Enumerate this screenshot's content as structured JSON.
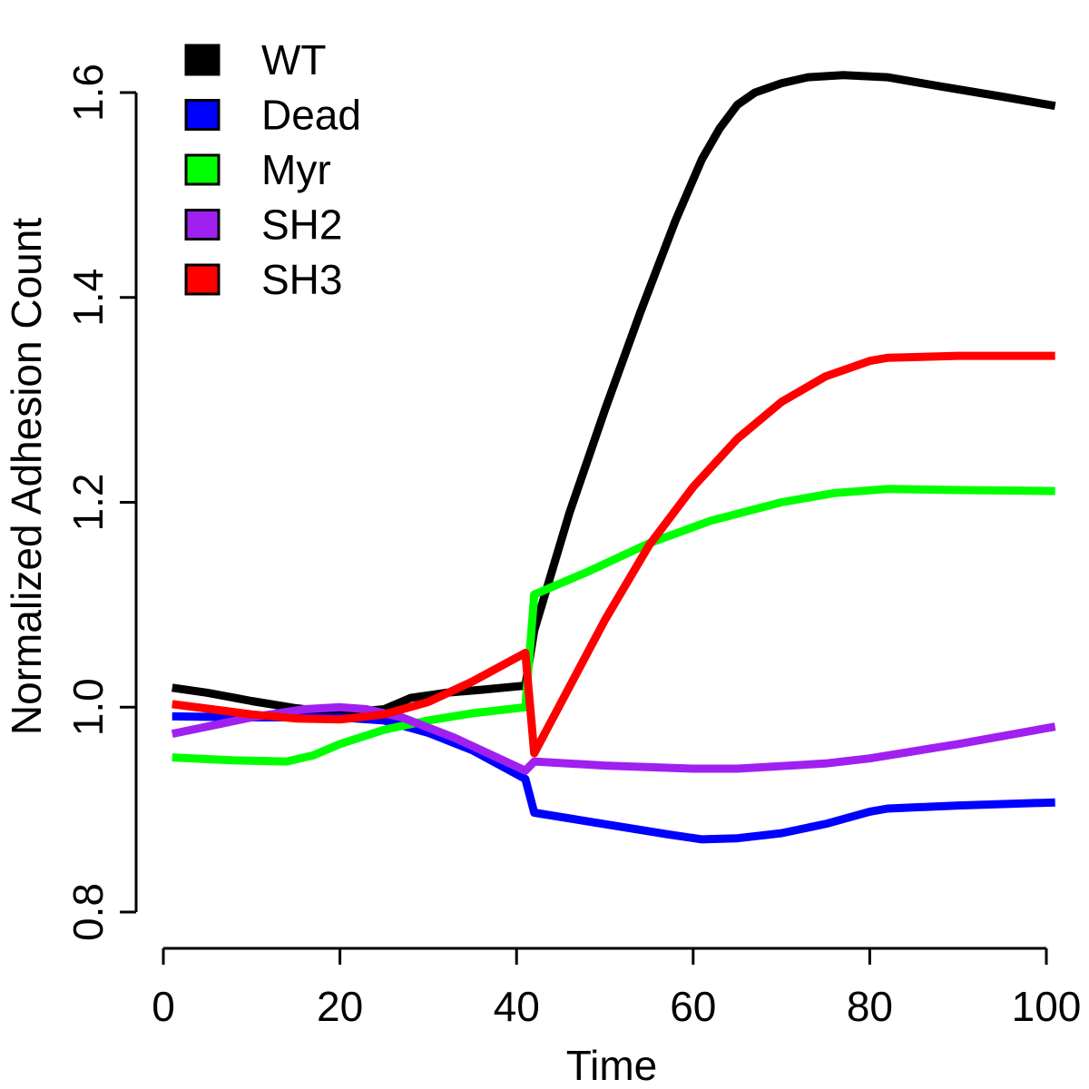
{
  "chart_data": {
    "type": "line",
    "xlabel": "Time",
    "ylabel": "Normalized Adhesion Count",
    "xlim": [
      0,
      100
    ],
    "ylim": [
      0.8,
      1.6
    ],
    "x_ticks": [
      0,
      20,
      40,
      60,
      80,
      100
    ],
    "x_tick_labels": [
      "0",
      "20",
      "40",
      "60",
      "80",
      "100"
    ],
    "y_ticks": [
      0.8,
      1.0,
      1.2,
      1.4,
      1.6
    ],
    "y_tick_labels": [
      "0.8",
      "1.0",
      "1.2",
      "1.4",
      "1.6"
    ],
    "grid": false,
    "legend": {
      "position": "top-left"
    },
    "series": [
      {
        "name": "WT",
        "color": "#000000",
        "points": [
          [
            1,
            1.019
          ],
          [
            5,
            1.014
          ],
          [
            10,
            1.006
          ],
          [
            15,
            0.999
          ],
          [
            20,
            0.994
          ],
          [
            25,
            0.998
          ],
          [
            28,
            1.009
          ],
          [
            32,
            1.014
          ],
          [
            36,
            1.017
          ],
          [
            41,
            1.021
          ],
          [
            42,
            1.075
          ],
          [
            46,
            1.19
          ],
          [
            50,
            1.29
          ],
          [
            54,
            1.385
          ],
          [
            58,
            1.475
          ],
          [
            61,
            1.535
          ],
          [
            63,
            1.565
          ],
          [
            65,
            1.588
          ],
          [
            67,
            1.6
          ],
          [
            70,
            1.609
          ],
          [
            73,
            1.615
          ],
          [
            77,
            1.617
          ],
          [
            82,
            1.615
          ],
          [
            88,
            1.606
          ],
          [
            95,
            1.596
          ],
          [
            101,
            1.587
          ]
        ]
      },
      {
        "name": "Dead",
        "color": "#0000ff",
        "points": [
          [
            1,
            0.991
          ],
          [
            10,
            0.99
          ],
          [
            20,
            0.99
          ],
          [
            25,
            0.987
          ],
          [
            30,
            0.975
          ],
          [
            35,
            0.958
          ],
          [
            41,
            0.93
          ],
          [
            42,
            0.897
          ],
          [
            47,
            0.89
          ],
          [
            52,
            0.883
          ],
          [
            57,
            0.876
          ],
          [
            61,
            0.871
          ],
          [
            65,
            0.872
          ],
          [
            70,
            0.877
          ],
          [
            75,
            0.886
          ],
          [
            80,
            0.898
          ],
          [
            82,
            0.901
          ],
          [
            90,
            0.904
          ],
          [
            101,
            0.907
          ]
        ]
      },
      {
        "name": "Myr",
        "color": "#00ff00",
        "points": [
          [
            1,
            0.951
          ],
          [
            8,
            0.948
          ],
          [
            14,
            0.947
          ],
          [
            17,
            0.953
          ],
          [
            20,
            0.964
          ],
          [
            25,
            0.978
          ],
          [
            30,
            0.987
          ],
          [
            35,
            0.994
          ],
          [
            41,
            1.0
          ],
          [
            42,
            1.11
          ],
          [
            48,
            1.132
          ],
          [
            55,
            1.16
          ],
          [
            62,
            1.182
          ],
          [
            70,
            1.2
          ],
          [
            76,
            1.209
          ],
          [
            82,
            1.213
          ],
          [
            90,
            1.212
          ],
          [
            101,
            1.211
          ]
        ]
      },
      {
        "name": "SH2",
        "color": "#a020f0",
        "points": [
          [
            1,
            0.974
          ],
          [
            10,
            0.99
          ],
          [
            16,
            0.998
          ],
          [
            20,
            1.0
          ],
          [
            23,
            0.998
          ],
          [
            27,
            0.99
          ],
          [
            33,
            0.97
          ],
          [
            40,
            0.942
          ],
          [
            41,
            0.938
          ],
          [
            42,
            0.947
          ],
          [
            50,
            0.943
          ],
          [
            60,
            0.94
          ],
          [
            65,
            0.94
          ],
          [
            75,
            0.945
          ],
          [
            80,
            0.95
          ],
          [
            90,
            0.964
          ],
          [
            101,
            0.981
          ]
        ]
      },
      {
        "name": "SH3",
        "color": "#ff0000",
        "points": [
          [
            1,
            1.003
          ],
          [
            10,
            0.993
          ],
          [
            15,
            0.989
          ],
          [
            20,
            0.988
          ],
          [
            25,
            0.993
          ],
          [
            30,
            1.005
          ],
          [
            35,
            1.025
          ],
          [
            41,
            1.053
          ],
          [
            42,
            0.955
          ],
          [
            50,
            1.085
          ],
          [
            55,
            1.158
          ],
          [
            60,
            1.215
          ],
          [
            65,
            1.262
          ],
          [
            70,
            1.298
          ],
          [
            75,
            1.323
          ],
          [
            80,
            1.338
          ],
          [
            82,
            1.341
          ],
          [
            90,
            1.343
          ],
          [
            101,
            1.343
          ]
        ]
      }
    ]
  }
}
